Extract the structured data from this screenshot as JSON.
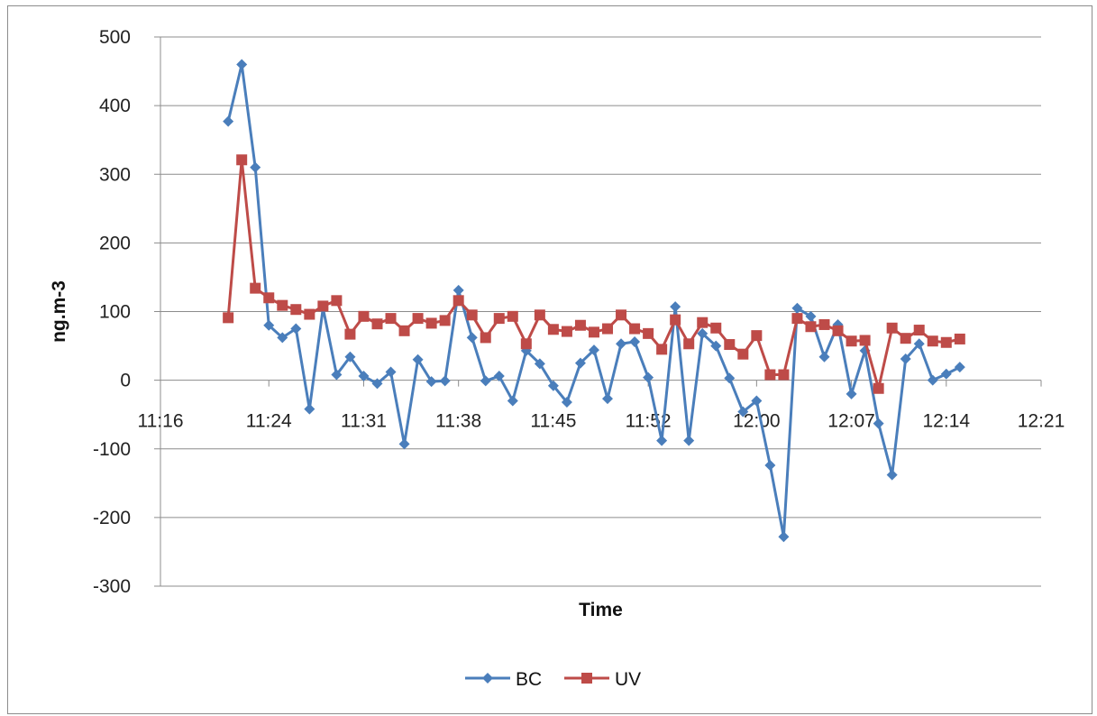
{
  "chart_data": {
    "type": "line",
    "xlabel": "Time",
    "ylabel": "ng.m-3",
    "ylim": [
      -300,
      500
    ],
    "yticks": [
      -300,
      -200,
      -100,
      0,
      100,
      200,
      300,
      400,
      500
    ],
    "xlim": [
      "11:16",
      "12:21"
    ],
    "xticks": [
      "11:16",
      "11:24",
      "11:31",
      "11:38",
      "11:45",
      "11:52",
      "12:00",
      "12:07",
      "12:14",
      "12:21"
    ],
    "grid": "horizontal",
    "legend": "bottom",
    "series": [
      {
        "name": "BC",
        "color": "#4a7ebb",
        "marker": "diamond",
        "x": [
          "11:21",
          "11:22",
          "11:23",
          "11:24",
          "11:25",
          "11:26",
          "11:27",
          "11:28",
          "11:29",
          "11:30",
          "11:31",
          "11:32",
          "11:33",
          "11:34",
          "11:35",
          "11:36",
          "11:37",
          "11:38",
          "11:39",
          "11:40",
          "11:41",
          "11:42",
          "11:43",
          "11:44",
          "11:45",
          "11:46",
          "11:47",
          "11:48",
          "11:49",
          "11:50",
          "11:51",
          "11:52",
          "11:53",
          "11:54",
          "11:55",
          "11:56",
          "11:57",
          "11:58",
          "11:59",
          "12:00",
          "12:01",
          "12:02",
          "12:03",
          "12:04",
          "12:05",
          "12:06",
          "12:07",
          "12:08",
          "12:09",
          "12:10",
          "12:11",
          "12:12",
          "12:13",
          "12:14",
          "12:15"
        ],
        "values": [
          377,
          460,
          310,
          80,
          62,
          75,
          -42,
          105,
          8,
          34,
          6,
          -5,
          12,
          -93,
          30,
          -2,
          -1,
          131,
          62,
          -1,
          6,
          -30,
          43,
          24,
          -8,
          -32,
          25,
          44,
          -27,
          53,
          56,
          4,
          -88,
          107,
          -88,
          68,
          50,
          3,
          -46,
          -30,
          -124,
          -228,
          105,
          93,
          34,
          81,
          -20,
          43,
          -63,
          -138,
          31,
          53,
          0,
          9,
          19
        ]
      },
      {
        "name": "UV",
        "color": "#be4b48",
        "marker": "square",
        "x": [
          "11:21",
          "11:22",
          "11:23",
          "11:24",
          "11:25",
          "11:26",
          "11:27",
          "11:28",
          "11:29",
          "11:30",
          "11:31",
          "11:32",
          "11:33",
          "11:34",
          "11:35",
          "11:36",
          "11:37",
          "11:38",
          "11:39",
          "11:40",
          "11:41",
          "11:42",
          "11:43",
          "11:44",
          "11:45",
          "11:46",
          "11:47",
          "11:48",
          "11:49",
          "11:50",
          "11:51",
          "11:52",
          "11:53",
          "11:54",
          "11:55",
          "11:56",
          "11:57",
          "11:58",
          "11:59",
          "12:00",
          "12:01",
          "12:02",
          "12:03",
          "12:04",
          "12:05",
          "12:06",
          "12:07",
          "12:08",
          "12:09",
          "12:10",
          "12:11",
          "12:12",
          "12:13",
          "12:14",
          "12:15"
        ],
        "values": [
          91,
          321,
          134,
          120,
          109,
          103,
          96,
          108,
          116,
          67,
          93,
          82,
          90,
          72,
          90,
          83,
          87,
          116,
          95,
          62,
          90,
          93,
          53,
          95,
          74,
          71,
          80,
          70,
          75,
          95,
          75,
          68,
          45,
          88,
          53,
          84,
          76,
          52,
          38,
          65,
          8,
          8,
          90,
          78,
          81,
          72,
          57,
          58,
          -12,
          76,
          61,
          73,
          57,
          55,
          60
        ]
      }
    ]
  }
}
